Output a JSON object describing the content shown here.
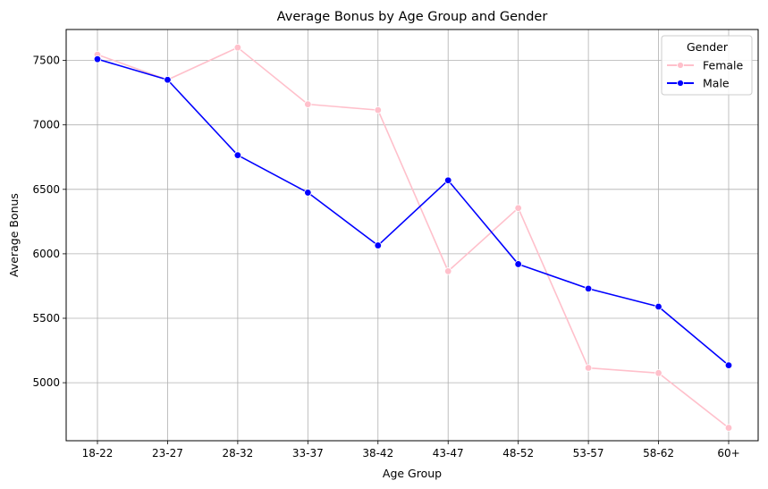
{
  "chart_data": {
    "type": "line",
    "title": "Average Bonus by Age Group and Gender",
    "xlabel": "Age Group",
    "ylabel": "Average Bonus",
    "categories": [
      "18-22",
      "23-27",
      "28-32",
      "33-37",
      "38-42",
      "43-47",
      "48-52",
      "53-57",
      "58-62",
      "60+"
    ],
    "yticks": [
      5000,
      5500,
      6000,
      6500,
      7000,
      7500
    ],
    "ylim": [
      4550,
      7740
    ],
    "grid": true,
    "legend": {
      "title": "Gender",
      "placement": "top-right"
    },
    "series": [
      {
        "name": "Female",
        "color": "#ffc0cb",
        "marker": "circle",
        "values": [
          7545,
          7350,
          7600,
          7160,
          7115,
          5865,
          6355,
          5115,
          5075,
          4650
        ]
      },
      {
        "name": "Male",
        "color": "#0000ff",
        "marker": "circle",
        "values": [
          7510,
          7350,
          6765,
          6475,
          6065,
          6570,
          5920,
          5730,
          5590,
          5135
        ]
      }
    ]
  }
}
